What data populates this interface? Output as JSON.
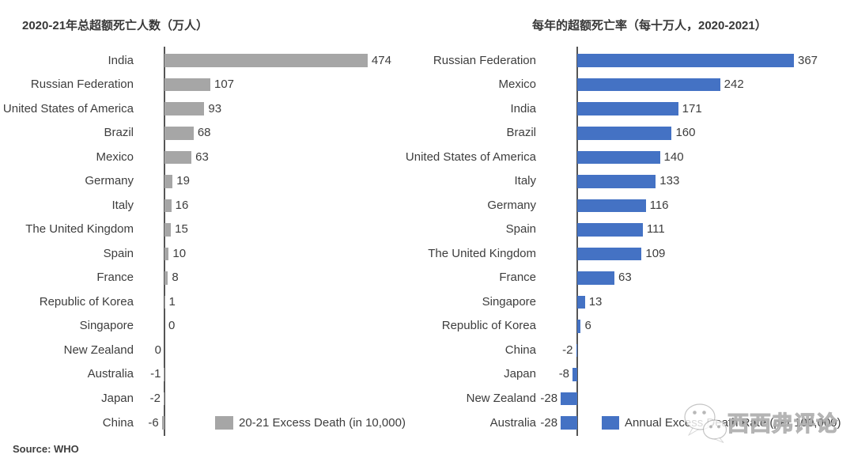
{
  "page": {
    "source_note": "Source: WHO",
    "watermark_text": "西西弗评论"
  },
  "chart_data": [
    {
      "type": "bar",
      "orientation": "horizontal",
      "title": "2020-21年总超额死亡人数（万人）",
      "legend": "20-21  Excess Death (in 10,000)",
      "legend_position": "bottom",
      "grid": false,
      "bar_color": "#a6a6a6",
      "axis_color": "#555555",
      "categories": [
        "India",
        "Russian Federation",
        "United States of America",
        "Brazil",
        "Mexico",
        "Germany",
        "Italy",
        "The United Kingdom",
        "Spain",
        "France",
        "Republic of Korea",
        "Singapore",
        "New Zealand",
        "Australia",
        "Japan",
        "China"
      ],
      "values": [
        474,
        107,
        93,
        68,
        63,
        19,
        16,
        15,
        10,
        8,
        1,
        0,
        0,
        -1,
        -2,
        -6
      ],
      "value_labels": [
        "474",
        "107",
        "93",
        "68",
        "63",
        "19",
        "16",
        "15",
        "10",
        "8",
        "1",
        "0",
        "0",
        "-1",
        "-2",
        "-6"
      ],
      "xlim": [
        -6,
        474
      ]
    },
    {
      "type": "bar",
      "orientation": "horizontal",
      "title": "每年的超额死亡率（每十万人，2020-2021）",
      "legend": "Annual Excess Death Rate (per 100,000)",
      "legend_position": "bottom",
      "grid": false,
      "bar_color": "#4472c4",
      "axis_color": "#555555",
      "categories": [
        "Russian Federation",
        "Mexico",
        "India",
        "Brazil",
        "United States of America",
        "Italy",
        "Germany",
        "Spain",
        "The United Kingdom",
        "France",
        "Singapore",
        "Republic of Korea",
        "China",
        "Japan",
        "New Zealand",
        "Australia"
      ],
      "values": [
        367,
        242,
        171,
        160,
        140,
        133,
        116,
        111,
        109,
        63,
        13,
        6,
        -2,
        -8,
        -28,
        -28
      ],
      "value_labels": [
        "367",
        "242",
        "171",
        "160",
        "140",
        "133",
        "116",
        "111",
        "109",
        "63",
        "13",
        "6",
        "-2",
        "-8",
        "-28",
        "-28"
      ],
      "xlim": [
        -28,
        367
      ]
    }
  ]
}
